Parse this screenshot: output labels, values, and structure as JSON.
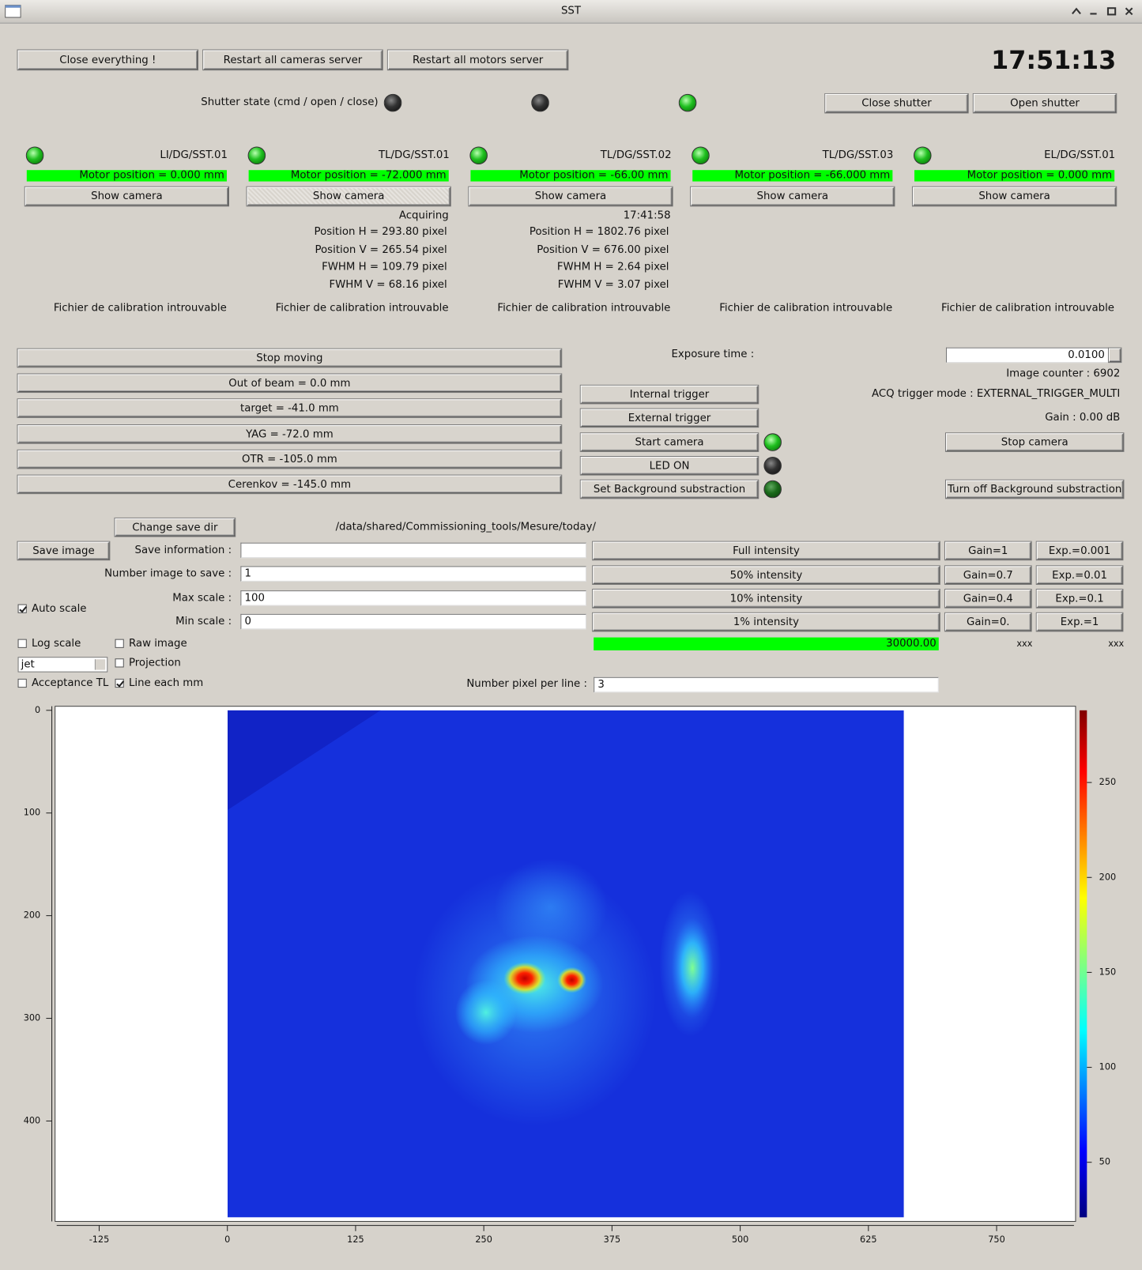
{
  "window": {
    "title": "SST"
  },
  "toolbar": {
    "buttons": [
      "Close everything !",
      "Restart all cameras server",
      "Restart all motors server"
    ],
    "clock": "17:51:13"
  },
  "shutter": {
    "label": "Shutter state (cmd / open / close)",
    "leds": [
      "off",
      "off",
      "on"
    ],
    "buttons": [
      "Close shutter",
      "Open shutter"
    ]
  },
  "cameras": [
    {
      "name": "LI/DG/SST.01",
      "led": "on",
      "motor": "Motor position = 0.000 mm",
      "button": "Show camera",
      "calibration": "Fichier de calibration introuvable"
    },
    {
      "name": "TL/DG/SST.01",
      "led": "on",
      "motor": "Motor position = -72.000 mm",
      "button": "Show camera",
      "status": "Acquiring",
      "info": [
        "Position H = 293.80 pixel",
        "Position V = 265.54 pixel",
        "FWHM H = 109.79 pixel",
        "FWHM V = 68.16 pixel"
      ],
      "calibration": "Fichier de calibration introuvable"
    },
    {
      "name": "TL/DG/SST.02",
      "led": "on",
      "motor": "Motor position = -66.00 mm",
      "button": "Show camera",
      "status": "17:41:58",
      "info": [
        "Position H = 1802.76 pixel",
        "Position V = 676.00 pixel",
        "FWHM H = 2.64 pixel",
        "FWHM V = 3.07 pixel"
      ],
      "calibration": "Fichier de calibration introuvable"
    },
    {
      "name": "TL/DG/SST.03",
      "led": "on",
      "motor": "Motor position = -66.000 mm",
      "button": "Show camera",
      "calibration": "Fichier de calibration introuvable"
    },
    {
      "name": "EL/DG/SST.01",
      "led": "on",
      "motor": "Motor position = 0.000 mm",
      "button": "Show camera",
      "calibration": "Fichier de calibration introuvable"
    }
  ],
  "motors": [
    "Stop moving",
    "Out of beam = 0.0 mm",
    "target = -41.0 mm",
    "YAG = -72.0 mm",
    "OTR = -105.0 mm",
    "Cerenkov = -145.0 mm"
  ],
  "camera_control": {
    "exposure_label": "Exposure time :",
    "exposure_value": "0.0100",
    "image_counter": "Image counter : 6902",
    "trigger_mode": "ACQ trigger mode : EXTERNAL_TRIGGER_MULTI",
    "gain": "Gain : 0.00 dB",
    "buttons": [
      {
        "label": "Internal trigger"
      },
      {
        "label": "External trigger"
      },
      {
        "label": "Start camera",
        "led": "on"
      },
      {
        "label": "LED ON",
        "led": "off"
      },
      {
        "label": "Set Background substraction",
        "led": "dim"
      }
    ],
    "right_buttons": [
      "Stop camera",
      "Turn off Background substraction"
    ]
  },
  "save": {
    "change_dir": "Change save dir",
    "path": "/data/shared/Commissioning_tools/Mesure/today/",
    "save_button": "Save image",
    "fields": [
      {
        "label": "Save information :"
      },
      {
        "label": "Number image to save :",
        "value": "1"
      },
      {
        "label": "Max scale :",
        "value": "100"
      },
      {
        "label": "Min scale :",
        "value": "0"
      }
    ]
  },
  "presets": {
    "rows": [
      [
        "Full intensity",
        "Gain=1",
        "Exp.=0.001"
      ],
      [
        "50% intensity",
        "Gain=0.7",
        "Exp.=0.01"
      ],
      [
        "10% intensity",
        "Gain=0.4",
        "Exp.=0.1"
      ],
      [
        "1% intensity",
        "Gain=0.",
        "Exp.=1"
      ]
    ],
    "level": "30000.00",
    "readouts": [
      "xxx",
      "xxx"
    ]
  },
  "options": {
    "checkboxes": [
      {
        "label": "Auto scale",
        "checked": true
      },
      {
        "label": "Log scale",
        "checked": false
      },
      {
        "label": "Raw image",
        "checked": false
      },
      {
        "label": "Projection",
        "checked": false
      },
      {
        "label": "Acceptance TL",
        "checked": false
      },
      {
        "label": "Line each mm",
        "checked": true
      }
    ],
    "colormap": "jet",
    "pixel_per_line": {
      "label": "Number pixel per line :",
      "value": "3"
    }
  },
  "plot": {
    "xlim": [
      -168,
      827
    ],
    "ylim": [
      0,
      497
    ],
    "xticks": [
      -125,
      0,
      125,
      250,
      375,
      500,
      625,
      750
    ],
    "yticks": [
      0,
      100,
      200,
      300,
      400
    ],
    "colorbar": {
      "lim": [
        21,
        288
      ],
      "ticks": [
        50,
        100,
        150,
        200,
        250
      ]
    }
  }
}
